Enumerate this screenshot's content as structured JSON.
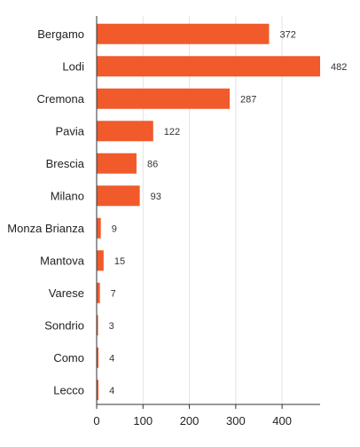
{
  "chart_data": {
    "type": "bar",
    "orientation": "horizontal",
    "categories": [
      "Bergamo",
      "Lodi",
      "Cremona",
      "Pavia",
      "Brescia",
      "Milano",
      "Monza Brianza",
      "Mantova",
      "Varese",
      "Sondrio",
      "Como",
      "Lecco"
    ],
    "values": [
      372,
      482,
      287,
      122,
      86,
      93,
      9,
      15,
      7,
      3,
      4,
      4
    ],
    "title": "",
    "xlabel": "",
    "ylabel": "",
    "xlim": [
      0,
      482
    ],
    "xticks": [
      0,
      100,
      200,
      300,
      400
    ],
    "grid": true,
    "legend": "none",
    "bar_color": "#f15a2b"
  }
}
